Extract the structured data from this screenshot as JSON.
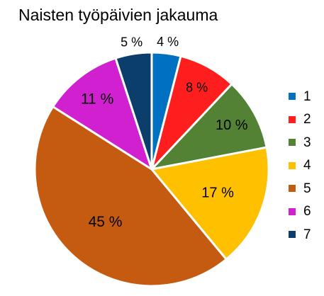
{
  "chart_data": {
    "type": "pie",
    "title": "Naisten työpäivien jakauma",
    "categories": [
      "1",
      "2",
      "3",
      "4",
      "5",
      "6",
      "7"
    ],
    "values": [
      4,
      8,
      10,
      17,
      45,
      11,
      5
    ],
    "data_labels": [
      "4 %",
      "8 %",
      "10 %",
      "17 %",
      "45 %",
      "11 %",
      "5 %"
    ],
    "colors": [
      "#0070C0",
      "#FF1E1E",
      "#548235",
      "#FFC000",
      "#C55A11",
      "#D020D0",
      "#0B3E6B"
    ],
    "start_angle_deg": 0,
    "direction": "clockwise",
    "legend_position": "right"
  }
}
